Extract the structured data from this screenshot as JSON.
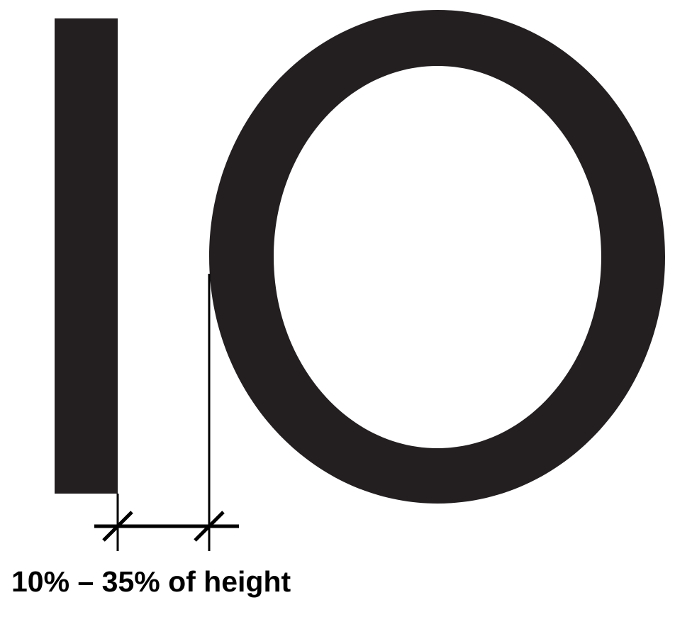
{
  "diagram": {
    "caption": "10% – 35% of height",
    "letters": [
      "I",
      "O"
    ],
    "ink_color": "#231f20",
    "dimension_color": "#000000",
    "background_color": "#ffffff"
  }
}
